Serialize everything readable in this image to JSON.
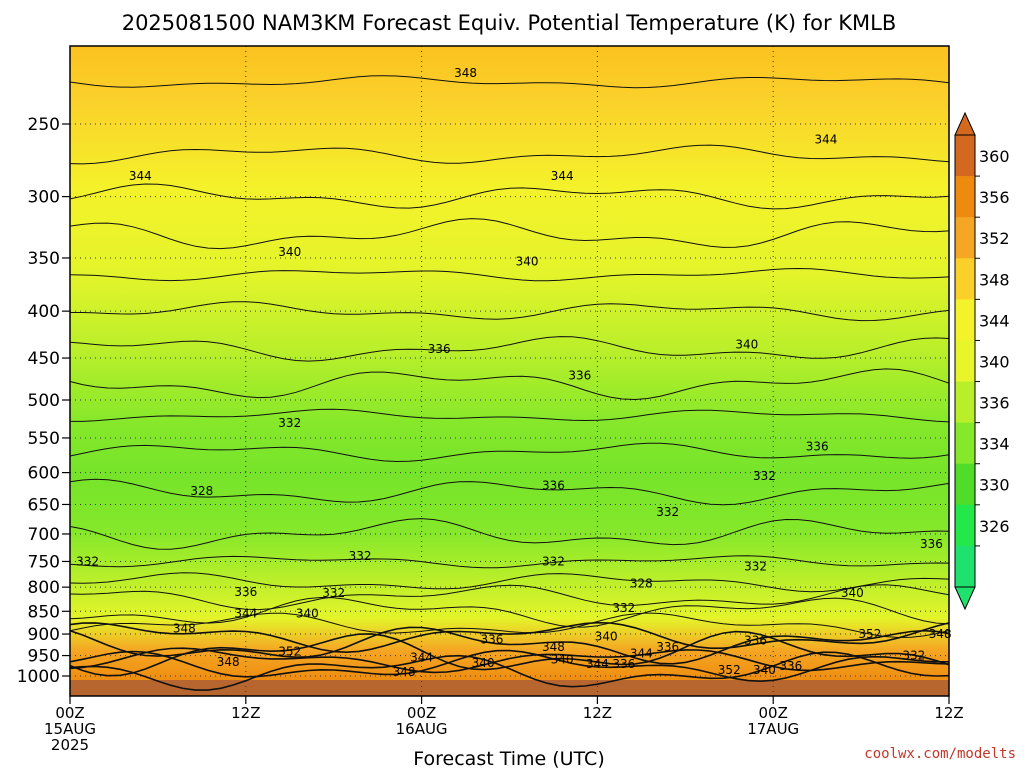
{
  "chart_data": {
    "type": "heatmap",
    "title": "2025081500 NAM3KM Forecast Equiv. Potential Temperature (K) for KMLB",
    "xlabel": "Forecast Time (UTC)",
    "y_axis": "pressure (hPa), inverted",
    "ylim": [
      1000,
      200
    ],
    "y_ticks": [
      "250",
      "300",
      "350",
      "400",
      "450",
      "500",
      "550",
      "600",
      "650",
      "700",
      "750",
      "800",
      "850",
      "900",
      "950",
      "1000"
    ],
    "x_ticks": [
      {
        "lines": [
          "00Z",
          "15AUG",
          "2025"
        ]
      },
      {
        "lines": [
          "12Z"
        ]
      },
      {
        "lines": [
          "00Z",
          "16AUG"
        ]
      },
      {
        "lines": [
          "12Z"
        ]
      },
      {
        "lines": [
          "00Z",
          "17AUG"
        ]
      },
      {
        "lines": [
          "12Z"
        ]
      }
    ],
    "colorbar": {
      "labels": [
        "360",
        "356",
        "352",
        "348",
        "344",
        "340",
        "336",
        "334",
        "330",
        "326"
      ],
      "colors": [
        "#d2691e",
        "#ee8b0f",
        "#f5a623",
        "#fbd02a",
        "#f4f22a",
        "#e8f52a",
        "#b9ef2a",
        "#86e82a",
        "#4fdd2a",
        "#22e84a",
        "#1fe26e"
      ]
    },
    "contour_labels": [
      {
        "text": "348",
        "t": 0.45,
        "p": 220
      },
      {
        "text": "344",
        "t": 0.08,
        "p": 285
      },
      {
        "text": "344",
        "t": 0.56,
        "p": 285
      },
      {
        "text": "344",
        "t": 0.86,
        "p": 260
      },
      {
        "text": "340",
        "t": 0.25,
        "p": 345
      },
      {
        "text": "340",
        "t": 0.52,
        "p": 353
      },
      {
        "text": "340",
        "t": 0.77,
        "p": 435
      },
      {
        "text": "336",
        "t": 0.42,
        "p": 440
      },
      {
        "text": "336",
        "t": 0.58,
        "p": 470
      },
      {
        "text": "332",
        "t": 0.25,
        "p": 530
      },
      {
        "text": "336",
        "t": 0.85,
        "p": 562
      },
      {
        "text": "332",
        "t": 0.79,
        "p": 605
      },
      {
        "text": "328",
        "t": 0.15,
        "p": 628
      },
      {
        "text": "336",
        "t": 0.55,
        "p": 620
      },
      {
        "text": "332",
        "t": 0.68,
        "p": 662
      },
      {
        "text": "336",
        "t": 0.98,
        "p": 718
      },
      {
        "text": "332",
        "t": 0.33,
        "p": 740
      },
      {
        "text": "332",
        "t": 0.55,
        "p": 750
      },
      {
        "text": "332",
        "t": 0.78,
        "p": 760
      },
      {
        "text": "332",
        "t": 0.02,
        "p": 750
      },
      {
        "text": "328",
        "t": 0.65,
        "p": 793
      },
      {
        "text": "336",
        "t": 0.2,
        "p": 810
      },
      {
        "text": "332",
        "t": 0.3,
        "p": 812
      },
      {
        "text": "340",
        "t": 0.89,
        "p": 812
      },
      {
        "text": "344",
        "t": 0.2,
        "p": 855
      },
      {
        "text": "340",
        "t": 0.27,
        "p": 855
      },
      {
        "text": "332",
        "t": 0.63,
        "p": 843
      },
      {
        "text": "348",
        "t": 0.13,
        "p": 887
      },
      {
        "text": "336",
        "t": 0.48,
        "p": 912
      },
      {
        "text": "340",
        "t": 0.61,
        "p": 905
      },
      {
        "text": "336",
        "t": 0.78,
        "p": 915
      },
      {
        "text": "352",
        "t": 0.91,
        "p": 900
      },
      {
        "text": "348",
        "t": 0.99,
        "p": 900
      },
      {
        "text": "352",
        "t": 0.25,
        "p": 940
      },
      {
        "text": "348",
        "t": 0.55,
        "p": 930
      },
      {
        "text": "344",
        "t": 0.65,
        "p": 945
      },
      {
        "text": "336",
        "t": 0.68,
        "p": 930
      },
      {
        "text": "344",
        "t": 0.4,
        "p": 955
      },
      {
        "text": "348",
        "t": 0.18,
        "p": 965
      },
      {
        "text": "340",
        "t": 0.47,
        "p": 968
      },
      {
        "text": "340",
        "t": 0.56,
        "p": 960
      },
      {
        "text": "344",
        "t": 0.6,
        "p": 970
      },
      {
        "text": "336",
        "t": 0.63,
        "p": 970
      },
      {
        "text": "352",
        "t": 0.75,
        "p": 985
      },
      {
        "text": "340",
        "t": 0.79,
        "p": 985
      },
      {
        "text": "336",
        "t": 0.82,
        "p": 975
      },
      {
        "text": "332",
        "t": 0.96,
        "p": 950
      },
      {
        "text": "348",
        "t": 0.38,
        "p": 990
      }
    ]
  },
  "credit": "coolwx.com/modelts"
}
